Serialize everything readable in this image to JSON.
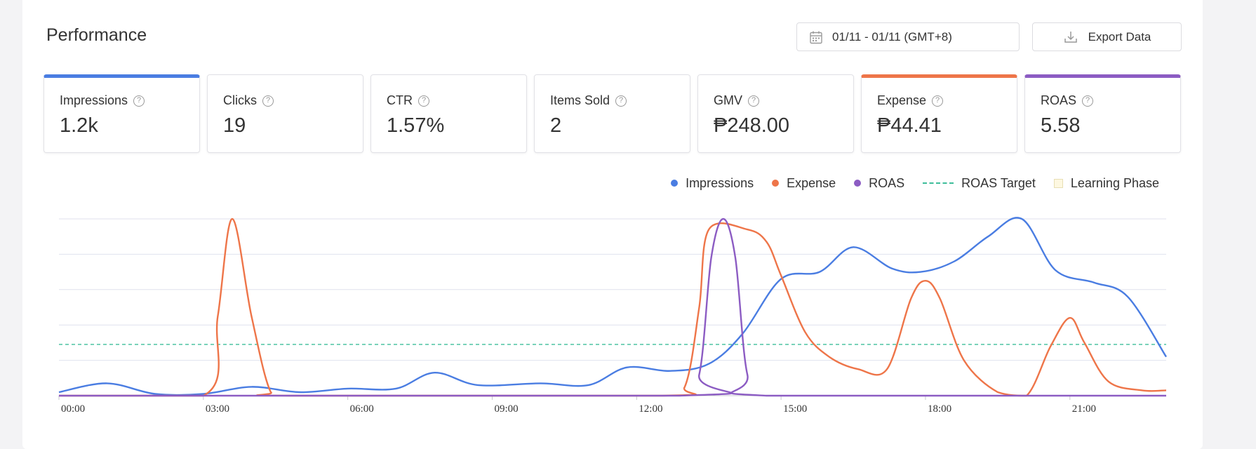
{
  "page": {
    "title": "Performance"
  },
  "toolbar": {
    "date_range": "01/11 - 01/11 (GMT+8)",
    "export_label": "Export Data"
  },
  "metrics": [
    {
      "label": "Impressions",
      "value": "1.2k",
      "selected": true,
      "color": "#4a7de2"
    },
    {
      "label": "Clicks",
      "value": "19",
      "selected": false
    },
    {
      "label": "CTR",
      "value": "1.57%",
      "selected": false
    },
    {
      "label": "Items Sold",
      "value": "2",
      "selected": false
    },
    {
      "label": "GMV",
      "value": "₱248.00",
      "selected": false
    },
    {
      "label": "Expense",
      "value": "₱44.41",
      "selected": true,
      "color": "#ee7549"
    },
    {
      "label": "ROAS",
      "value": "5.58",
      "selected": true,
      "color": "#8c5cc3"
    }
  ],
  "legend": [
    {
      "label": "Impressions",
      "kind": "dot",
      "color": "#4a7de2"
    },
    {
      "label": "Expense",
      "kind": "dot",
      "color": "#ee7549"
    },
    {
      "label": "ROAS",
      "kind": "dot",
      "color": "#8c5cc3"
    },
    {
      "label": "ROAS Target",
      "kind": "dash",
      "color": "#3dbd9a"
    },
    {
      "label": "Learning Phase",
      "kind": "box",
      "color": "#fdf8e1"
    }
  ],
  "chart_data": {
    "type": "line",
    "x_ticks": [
      "00:00",
      "03:00",
      "06:00",
      "09:00",
      "12:00",
      "15:00",
      "18:00",
      "21:00"
    ],
    "x_range": [
      0,
      23
    ],
    "y_normalized": [
      0,
      1
    ],
    "grid": true,
    "legend_position": "top-right",
    "roas_target_level": 0.29,
    "series": [
      {
        "name": "Impressions",
        "color": "#4a7de2",
        "x": [
          0,
          1,
          2,
          3,
          4,
          5,
          6,
          7,
          7.8,
          8.7,
          10,
          11,
          11.8,
          12.7,
          13.5,
          14.2,
          15,
          15.8,
          16.5,
          17.3,
          17.9,
          18.6,
          19.3,
          20,
          20.7,
          21.5,
          22.2,
          23
        ],
        "y": [
          0.02,
          0.07,
          0.01,
          0.01,
          0.05,
          0.02,
          0.04,
          0.04,
          0.13,
          0.06,
          0.07,
          0.06,
          0.16,
          0.14,
          0.18,
          0.35,
          0.66,
          0.7,
          0.84,
          0.72,
          0.7,
          0.76,
          0.9,
          1.0,
          0.71,
          0.64,
          0.56,
          0.22
        ]
      },
      {
        "name": "Expense",
        "color": "#ee7549",
        "x": [
          0,
          3,
          3.3,
          3.6,
          4.0,
          4.4,
          4.8,
          12.5,
          13,
          13.3,
          13.5,
          14.3,
          14.7,
          15,
          15.5,
          16,
          16.6,
          17.2,
          17.7,
          18,
          18.3,
          18.8,
          19.5,
          20.1,
          20.6,
          21,
          21.3,
          21.8,
          22.5,
          23
        ],
        "y": [
          0,
          0,
          0.45,
          1.0,
          0.45,
          0.02,
          0,
          0,
          0.05,
          0.5,
          0.94,
          0.94,
          0.87,
          0.68,
          0.36,
          0.22,
          0.15,
          0.15,
          0.55,
          0.65,
          0.55,
          0.2,
          0.02,
          0.0,
          0.28,
          0.44,
          0.3,
          0.08,
          0.03,
          0.03
        ]
      },
      {
        "name": "ROAS",
        "color": "#8c5cc3",
        "x": [
          0,
          12.9,
          13.3,
          13.55,
          13.8,
          14.05,
          14.3,
          14.7,
          23
        ],
        "y": [
          0,
          0,
          0.12,
          0.78,
          1.0,
          0.78,
          0.12,
          0,
          0
        ]
      }
    ]
  }
}
